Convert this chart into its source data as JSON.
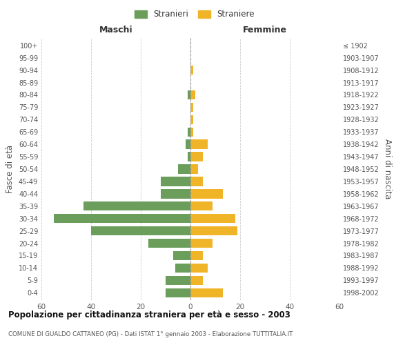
{
  "age_groups": [
    "0-4",
    "5-9",
    "10-14",
    "15-19",
    "20-24",
    "25-29",
    "30-34",
    "35-39",
    "40-44",
    "45-49",
    "50-54",
    "55-59",
    "60-64",
    "65-69",
    "70-74",
    "75-79",
    "80-84",
    "85-89",
    "90-94",
    "95-99",
    "100+"
  ],
  "birth_years": [
    "1998-2002",
    "1993-1997",
    "1988-1992",
    "1983-1987",
    "1978-1982",
    "1973-1977",
    "1968-1972",
    "1963-1967",
    "1958-1962",
    "1953-1957",
    "1948-1952",
    "1943-1947",
    "1938-1942",
    "1933-1937",
    "1928-1932",
    "1923-1927",
    "1918-1922",
    "1913-1917",
    "1908-1912",
    "1903-1907",
    "≤ 1902"
  ],
  "maschi": [
    10,
    10,
    6,
    7,
    17,
    40,
    55,
    43,
    12,
    12,
    5,
    1,
    2,
    1,
    0,
    0,
    1,
    0,
    0,
    0,
    0
  ],
  "femmine": [
    13,
    5,
    7,
    5,
    9,
    19,
    18,
    9,
    13,
    5,
    3,
    5,
    7,
    1,
    1,
    1,
    2,
    0,
    1,
    0,
    0
  ],
  "color_maschi": "#6a9e5a",
  "color_femmine": "#f0b429",
  "xlim": 60,
  "title": "Popolazione per cittadinanza straniera per età e sesso - 2003",
  "subtitle": "COMUNE DI GUALDO CATTANEO (PG) - Dati ISTAT 1° gennaio 2003 - Elaborazione TUTTITALIA.IT",
  "ylabel_left": "Fasce di età",
  "ylabel_right": "Anni di nascita",
  "label_maschi": "Stranieri",
  "label_femmine": "Straniere",
  "header_maschi": "Maschi",
  "header_femmine": "Femmine",
  "background_color": "#ffffff",
  "grid_color": "#cccccc",
  "bar_height": 0.75
}
